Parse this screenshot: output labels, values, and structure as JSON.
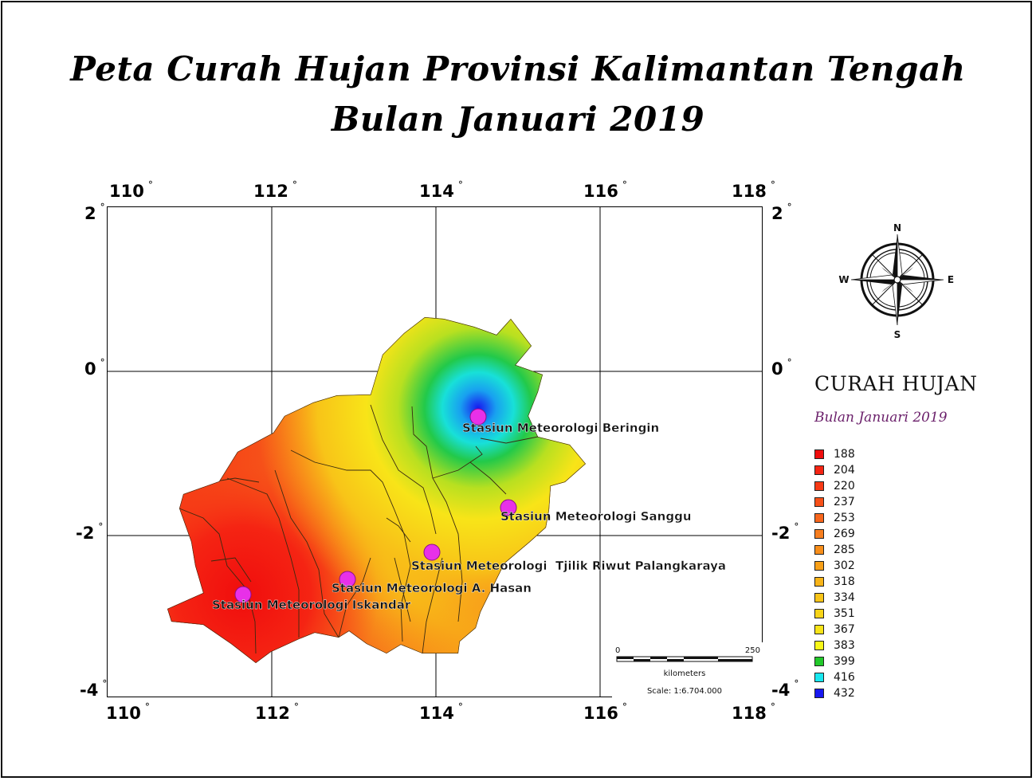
{
  "title_line1": "Peta Curah Hujan Provinsi Kalimantan Tengah",
  "title_line2": "Bulan Januari 2019",
  "axes": {
    "lon_top": [
      "110",
      "112",
      "114",
      "116",
      "118"
    ],
    "lon_bottom": [
      "110",
      "112",
      "114",
      "116",
      "118"
    ],
    "lat_left": [
      "2",
      "0",
      "-2",
      "-4"
    ],
    "lat_right": [
      "2",
      "0",
      "-2",
      "-4"
    ]
  },
  "stations": [
    {
      "name": "Stasiun Meteorologi Beringin"
    },
    {
      "name": "Stasiun Meteorologi Sanggu"
    },
    {
      "name": "Stasiun Meteorologi  Tjilik Riwut Palangkaraya"
    },
    {
      "name": "Stasiun Meteorologi A. Hasan"
    },
    {
      "name": "Stasiun Meteorologi Iskandar"
    }
  ],
  "compass": {
    "n": "N",
    "s": "S",
    "e": "E",
    "w": "W"
  },
  "legend": {
    "title": "CURAH HUJAN",
    "subtitle": "Bulan Januari 2019",
    "items": [
      {
        "value": "188",
        "color": "#f00d0d"
      },
      {
        "value": "204",
        "color": "#f52413"
      },
      {
        "value": "220",
        "color": "#f73a15"
      },
      {
        "value": "237",
        "color": "#f75018"
      },
      {
        "value": "253",
        "color": "#f7661c"
      },
      {
        "value": "269",
        "color": "#f77e1f"
      },
      {
        "value": "285",
        "color": "#f88e1a"
      },
      {
        "value": "302",
        "color": "#f8a018"
      },
      {
        "value": "318",
        "color": "#f8b418"
      },
      {
        "value": "334",
        "color": "#f8c418"
      },
      {
        "value": "351",
        "color": "#f8d418"
      },
      {
        "value": "367",
        "color": "#f8e418"
      },
      {
        "value": "383",
        "color": "#f8f818"
      },
      {
        "value": "399",
        "color": "#22c92a"
      },
      {
        "value": "416",
        "color": "#18e8f0"
      },
      {
        "value": "432",
        "color": "#1818f0"
      }
    ]
  },
  "scale_bar": {
    "start": "0",
    "end": "250",
    "unit": "kilometers",
    "ratio": "Scale: 1:6.704.000"
  }
}
